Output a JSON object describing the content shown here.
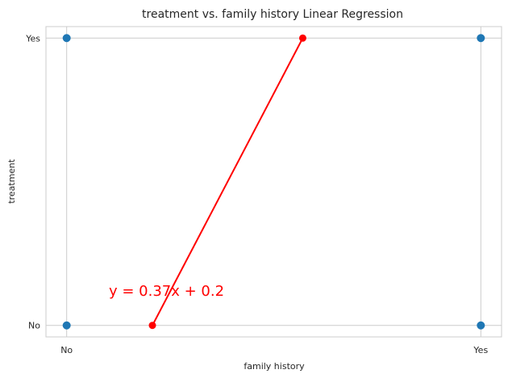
{
  "chart_data": {
    "type": "scatter",
    "title": "treatment vs. family history Linear Regression",
    "xlabel": "family history",
    "ylabel": "treatment",
    "x_ticks": [
      "No",
      "Yes"
    ],
    "y_ticks": [
      "No",
      "Yes"
    ],
    "xlim": [
      -0.05,
      1.05
    ],
    "ylim": [
      -0.04,
      1.04
    ],
    "grid": true,
    "points": [
      {
        "x": 0,
        "y": 0
      },
      {
        "x": 0,
        "y": 1
      },
      {
        "x": 1,
        "y": 0
      },
      {
        "x": 1,
        "y": 1
      }
    ],
    "regression_line": {
      "points": [
        {
          "x": 0.207,
          "y": 0
        },
        {
          "x": 0.57,
          "y": 1
        }
      ]
    },
    "annotation": "y = 0.37x + 0.2",
    "colors": {
      "points": "#1f77b4",
      "regression": "#ff0000",
      "grid": "#cccccc",
      "text": "#262626"
    }
  }
}
